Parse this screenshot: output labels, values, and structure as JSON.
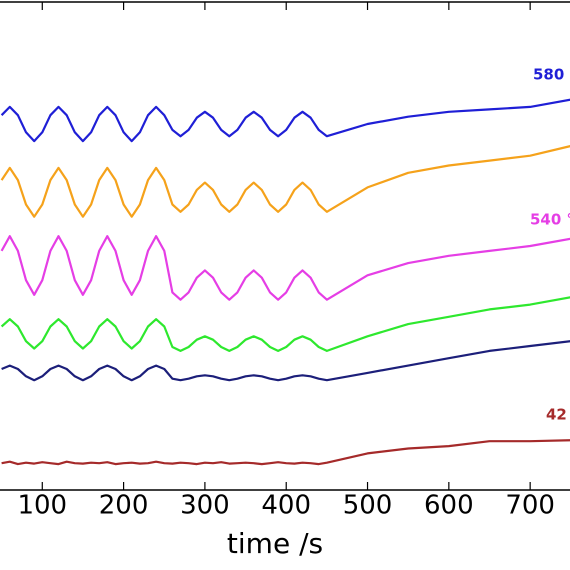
{
  "chart_data": {
    "type": "line",
    "xlabel": "time /s",
    "x": [
      50,
      60,
      70,
      80,
      90,
      100,
      110,
      120,
      130,
      140,
      150,
      160,
      170,
      180,
      190,
      200,
      210,
      220,
      230,
      240,
      250,
      260,
      270,
      280,
      290,
      300,
      310,
      320,
      330,
      340,
      350,
      360,
      370,
      380,
      390,
      400,
      410,
      420,
      430,
      440,
      450,
      500,
      550,
      600,
      650,
      700,
      750
    ],
    "series": [
      {
        "color": "#1f1fd6",
        "values": [
          76.8,
          78.5,
          76.8,
          73.3,
          71.5,
          73.3,
          76.8,
          78.5,
          76.8,
          73.3,
          71.5,
          73.3,
          76.8,
          78.5,
          76.8,
          73.3,
          71.5,
          73.3,
          76.8,
          78.5,
          76.8,
          73.8,
          72.5,
          73.8,
          76.3,
          77.5,
          76.3,
          73.8,
          72.5,
          73.8,
          76.3,
          77.5,
          76.3,
          73.8,
          72.5,
          73.8,
          76.3,
          77.5,
          76.3,
          73.8,
          72.5,
          75,
          76.5,
          77.5,
          78,
          78.5,
          80
        ]
      },
      {
        "color": "#f5a21b",
        "values": [
          63.5,
          66,
          63.5,
          58.5,
          56,
          58.5,
          63.5,
          66,
          63.5,
          58.5,
          56,
          58.5,
          63.5,
          66,
          63.5,
          58.5,
          56,
          58.5,
          63.5,
          66,
          63.5,
          58.5,
          57,
          58.5,
          61.5,
          63,
          61.5,
          58.5,
          57,
          58.5,
          61.5,
          63,
          61.5,
          58.5,
          57,
          58.5,
          61.5,
          63,
          61.5,
          58.5,
          57,
          62,
          65,
          66.5,
          67.5,
          68.5,
          70.5
        ]
      },
      {
        "color": "#e53ee5",
        "values": [
          49,
          52,
          49,
          43,
          40,
          43,
          49,
          52,
          49,
          43,
          40,
          43,
          49,
          52,
          49,
          43,
          40,
          43,
          49,
          52,
          49,
          40.5,
          39,
          40.5,
          43.5,
          45,
          43.5,
          40.5,
          39,
          40.5,
          43.5,
          45,
          43.5,
          40.5,
          39,
          40.5,
          43.5,
          45,
          43.5,
          40.5,
          39,
          44,
          46.5,
          48,
          49,
          50,
          51.5
        ]
      },
      {
        "color": "#2ee82e",
        "values": [
          33.5,
          35,
          33.5,
          30.5,
          29,
          30.5,
          33.5,
          35,
          33.5,
          30.5,
          29,
          30.5,
          33.5,
          35,
          33.5,
          30.5,
          29,
          30.5,
          33.5,
          35,
          33.5,
          29.3,
          28.5,
          29.3,
          30.8,
          31.5,
          30.8,
          29.3,
          28.5,
          29.3,
          30.8,
          31.5,
          30.8,
          29.3,
          28.5,
          29.3,
          30.8,
          31.5,
          30.8,
          29.3,
          28.5,
          31.5,
          34,
          35.5,
          37,
          38,
          39.5
        ]
      },
      {
        "color": "#1c1f7a",
        "values": [
          24.8,
          25.5,
          24.8,
          23.3,
          22.5,
          23.3,
          24.8,
          25.5,
          24.8,
          23.3,
          22.5,
          23.3,
          24.8,
          25.5,
          24.8,
          23.3,
          22.5,
          23.3,
          24.8,
          25.5,
          24.8,
          22.8,
          22.5,
          22.8,
          23.3,
          23.5,
          23.3,
          22.8,
          22.5,
          22.8,
          23.3,
          23.5,
          23.3,
          22.8,
          22.5,
          22.8,
          23.3,
          23.5,
          23.3,
          22.8,
          22.5,
          24,
          25.5,
          27,
          28.5,
          29.5,
          30.5
        ]
      },
      {
        "color": "#a52a2a",
        "values": [
          5.5,
          5.8,
          5.3,
          5.6,
          5.4,
          5.7,
          5.5,
          5.3,
          5.8,
          5.5,
          5.4,
          5.6,
          5.5,
          5.7,
          5.3,
          5.5,
          5.6,
          5.4,
          5.5,
          5.8,
          5.5,
          5.4,
          5.6,
          5.5,
          5.3,
          5.6,
          5.5,
          5.7,
          5.4,
          5.5,
          5.6,
          5.5,
          5.3,
          5.5,
          5.7,
          5.5,
          5.4,
          5.6,
          5.5,
          5.3,
          5.6,
          7.5,
          8.5,
          9,
          10,
          10,
          10.2
        ]
      }
    ],
    "annotations": [
      {
        "text": "580",
        "color": "#1f1fd6"
      },
      {
        "text": "540 °",
        "color": "#e53ee5"
      },
      {
        "text": "42",
        "color": "#a52a2a"
      }
    ],
    "xlim": [
      48,
      749
    ],
    "xticks": [
      100,
      200,
      300,
      400,
      500,
      600,
      700
    ],
    "ylim": [
      0,
      100
    ]
  }
}
